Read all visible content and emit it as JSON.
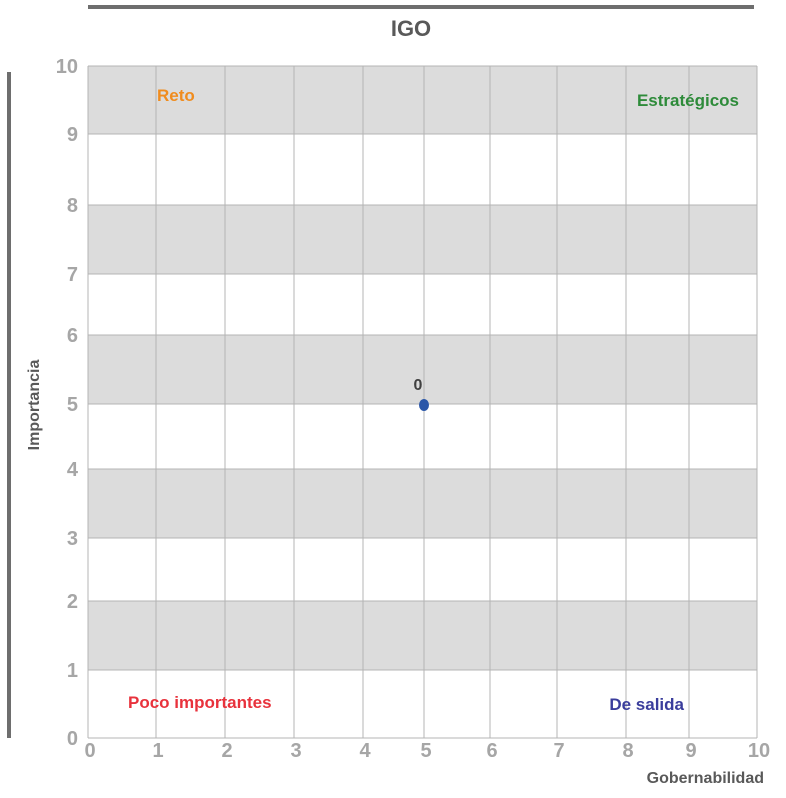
{
  "chart_data": {
    "type": "scatter",
    "title": "IGO",
    "xlabel": "Gobernabilidad",
    "ylabel": "Importancia",
    "xlim": [
      0,
      10
    ],
    "ylim": [
      0,
      10
    ],
    "x_ticks": [
      "0",
      "1",
      "2",
      "3",
      "4",
      "5",
      "6",
      "7",
      "8",
      "9",
      "10"
    ],
    "y_ticks": [
      "0",
      "1",
      "2",
      "3",
      "4",
      "5",
      "6",
      "7",
      "8",
      "9",
      "10"
    ],
    "grid": true,
    "band_fill": "#dcdcdc",
    "points": [
      {
        "label": "0",
        "x": 5,
        "y": 5,
        "color": "#2a56a8"
      }
    ],
    "quadrant_labels": [
      {
        "text": "Reto",
        "color": "#f08c1e"
      },
      {
        "text": "Estratégicos",
        "color": "#2e8b3a"
      },
      {
        "text": "Poco importantes",
        "color": "#e8323c"
      },
      {
        "text": "De salida",
        "color": "#3a3d9c"
      }
    ]
  }
}
